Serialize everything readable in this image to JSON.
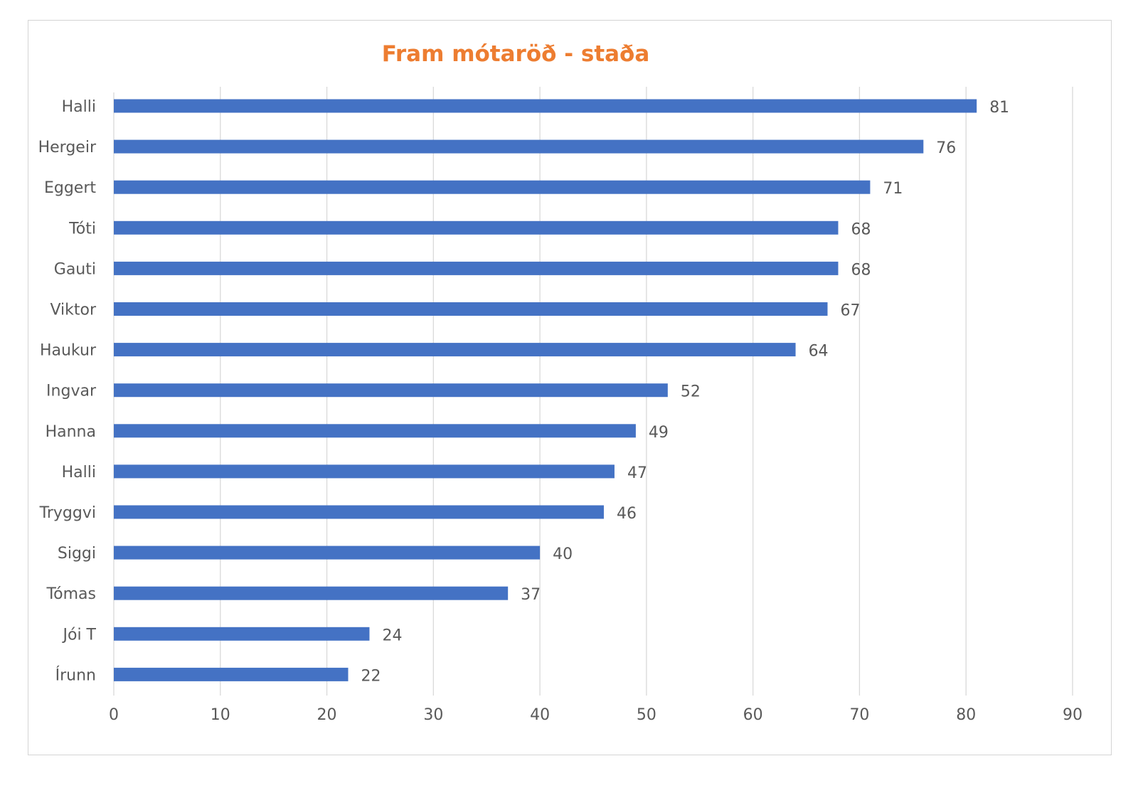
{
  "chart_data": {
    "type": "bar",
    "orientation": "horizontal",
    "title": "Fram mótaröð - staða",
    "categories": [
      "Halli",
      "Hergeir",
      "Eggert",
      "Tóti",
      "Gauti",
      "Viktor",
      "Haukur",
      "Ingvar",
      "Hanna",
      "Halli",
      "Tryggvi",
      "Siggi",
      "Tómas",
      "Jói T",
      "Írunn"
    ],
    "values": [
      81,
      76,
      71,
      68,
      68,
      67,
      64,
      52,
      49,
      47,
      46,
      40,
      37,
      24,
      22
    ],
    "xlim": [
      0,
      90
    ],
    "xticks": [
      0,
      10,
      20,
      30,
      40,
      50,
      60,
      70,
      80,
      90
    ],
    "xlabel": "",
    "ylabel": "",
    "data_labels": true,
    "grid": "vertical",
    "legend": "none",
    "colors": {
      "bar": "#4472c4",
      "title": "#ed7d31",
      "grid": "#d9d9d9",
      "text": "#595959"
    }
  }
}
